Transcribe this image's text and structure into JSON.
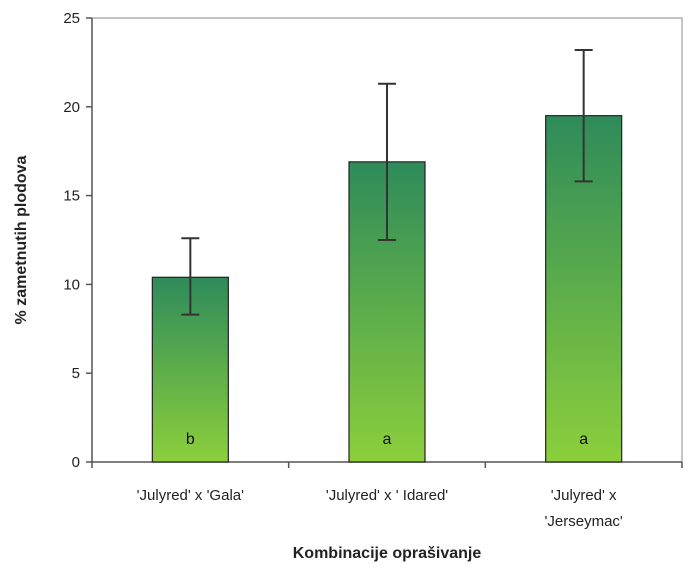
{
  "chart_data": {
    "type": "bar",
    "title": "",
    "xlabel": "Kombinacije oprašivanje",
    "ylabel": "% zametnutih plodova",
    "ylim": [
      0,
      25
    ],
    "yticks": [
      "0",
      "5",
      "10",
      "15",
      "20",
      "25"
    ],
    "categories": [
      [
        "'Julyred' x 'Gala'"
      ],
      [
        "'Julyred' x ' Idared'"
      ],
      [
        "'Julyred' x",
        "'Jerseymac'"
      ]
    ],
    "values": [
      10.4,
      16.9,
      19.5
    ],
    "error_low": [
      8.3,
      12.5,
      15.8
    ],
    "error_high": [
      12.6,
      21.3,
      23.2
    ],
    "bar_labels": [
      "b",
      "a",
      "a"
    ],
    "grid": false,
    "legend": "none",
    "colors": {
      "bar_top": "#2e8b5a",
      "bar_bottom": "#8ccf3c",
      "axis": "#555555",
      "error": "#333333"
    }
  }
}
